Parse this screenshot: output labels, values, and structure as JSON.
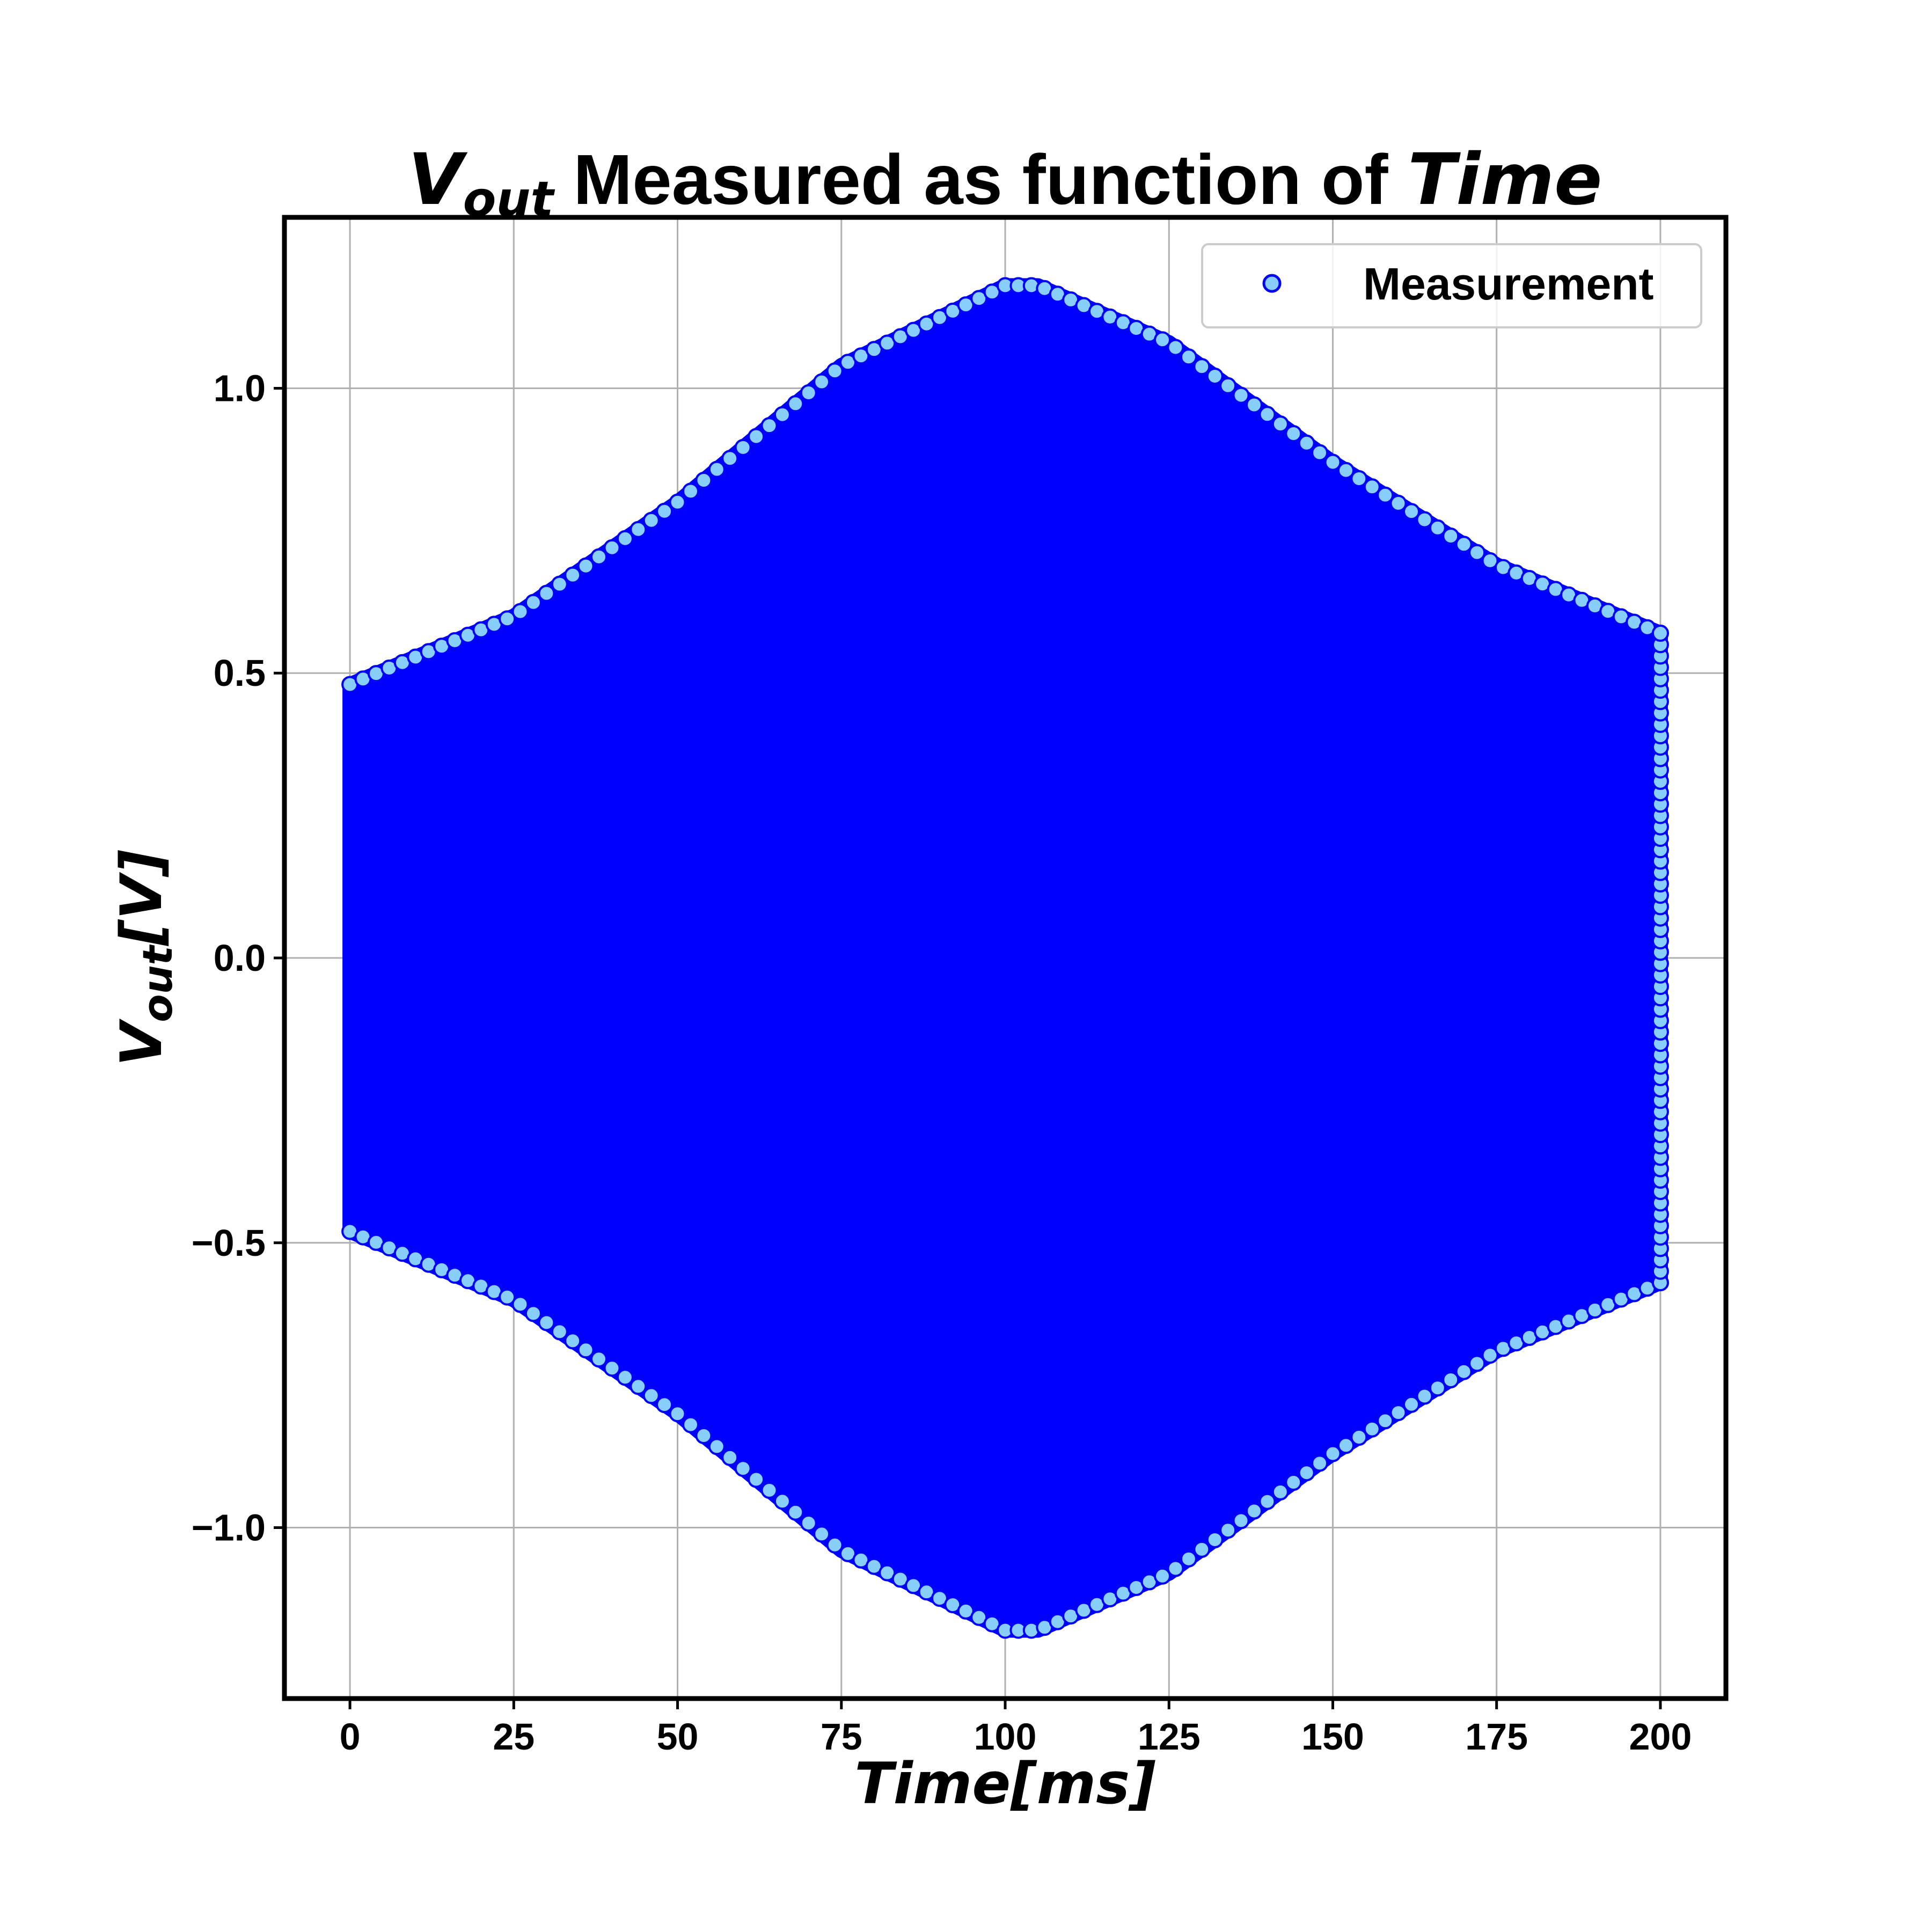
{
  "chart_data": {
    "type": "scatter",
    "title": {
      "prefix_var": "V",
      "prefix_sub": "out",
      "middle": " Measured as function of ",
      "suffix_var": "Time"
    },
    "xlabel": "Time[ms]",
    "ylabel": {
      "var": "V",
      "sub": "out",
      "unit": "[V]"
    },
    "xlim": [
      -10,
      210
    ],
    "ylim": [
      -1.3,
      1.3
    ],
    "xticks": [
      0,
      25,
      50,
      75,
      100,
      125,
      150,
      175,
      200
    ],
    "yticks": [
      -1.0,
      -0.5,
      0.0,
      0.5,
      1.0
    ],
    "ytick_labels": [
      "−1.0",
      "−0.5",
      "0.0",
      "0.5",
      "1.0"
    ],
    "grid": true,
    "legend": {
      "position": "top-right",
      "entries": [
        "Measurement"
      ]
    },
    "series": [
      {
        "name": "Measurement",
        "marker": "circle",
        "face_color": "#87CEFA",
        "edge_color": "#0000FF",
        "envelope": {
          "x": [
            0,
            25,
            50,
            75,
            100,
            105,
            125,
            150,
            175,
            200
          ],
          "amplitude": [
            0.48,
            0.6,
            0.8,
            1.04,
            1.18,
            1.18,
            1.08,
            0.87,
            0.69,
            0.57
          ]
        }
      }
    ]
  },
  "colors": {
    "marker_edge": "#0000FF",
    "marker_face": "#87CEFA",
    "grid": "#b0b0b0",
    "frame": "#000000"
  }
}
